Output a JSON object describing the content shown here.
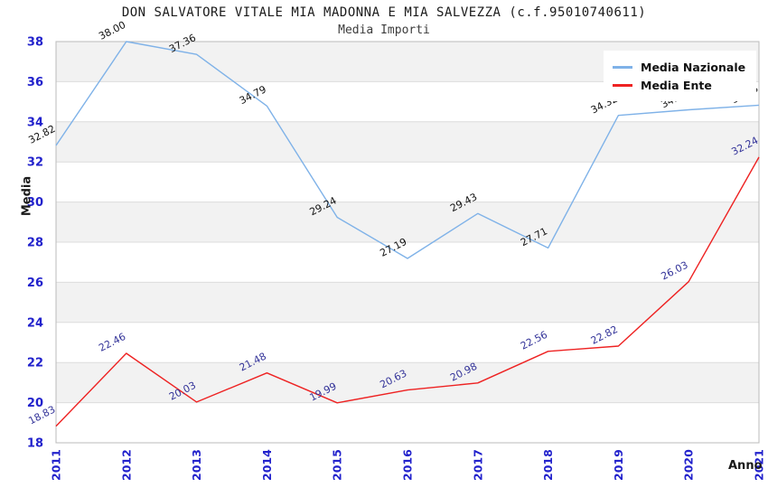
{
  "header": {
    "title": "DON SALVATORE VITALE MIA MADONNA E MIA SALVEZZA (c.f.95010740611)",
    "subtitle": "Media Importi"
  },
  "axes": {
    "y_title": "Media",
    "x_title": "Anno"
  },
  "legend": {
    "items": [
      {
        "label": "Media Nazionale",
        "color": "#7FB2E8"
      },
      {
        "label": "Media Ente",
        "color": "#EE2222"
      }
    ]
  },
  "chart_data": {
    "type": "line",
    "title": "DON SALVATORE VITALE MIA MADONNA E MIA SALVEZZA (c.f.95010740611)",
    "subtitle": "Media Importi",
    "xlabel": "Anno",
    "ylabel": "Media",
    "x": [
      2011,
      2012,
      2013,
      2014,
      2015,
      2016,
      2017,
      2018,
      2019,
      2020,
      2021
    ],
    "series": [
      {
        "name": "Media Nazionale",
        "color": "#7FB2E8",
        "label_color": "#111111",
        "values": [
          32.82,
          38.0,
          37.36,
          34.79,
          29.24,
          27.19,
          29.43,
          27.71,
          34.32,
          34.6,
          34.83
        ]
      },
      {
        "name": "Media Ente",
        "color": "#EE2222",
        "label_color": "#333399",
        "values": [
          18.83,
          22.46,
          20.03,
          21.48,
          19.99,
          20.63,
          20.98,
          22.56,
          22.82,
          26.03,
          32.24
        ]
      }
    ],
    "ylim": [
      18,
      38
    ],
    "ytick_step": 2,
    "grid": true,
    "legend_position": "top-right",
    "colors": {
      "tick_label": "#2222CC",
      "band_fill": "#F2F2F2",
      "grid_line": "#DCDCDC",
      "plot_border": "#BBBBBB"
    }
  }
}
